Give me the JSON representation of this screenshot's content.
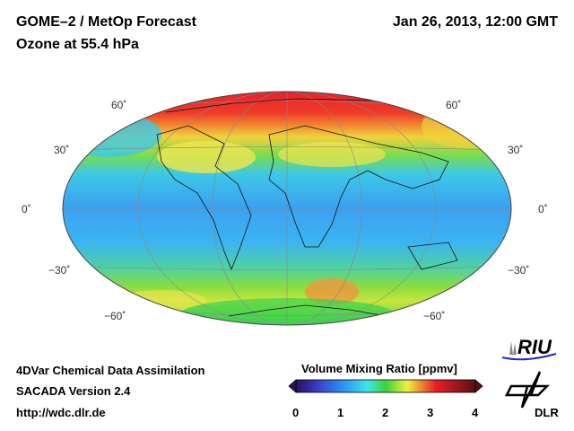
{
  "header": {
    "title": "GOME–2 / MetOp Forecast",
    "subtitle": "Ozone at 55.4 hPa",
    "datetime": "Jan 26, 2013, 12:00 GMT"
  },
  "map": {
    "projection": "hammer",
    "latitude_labels": [
      "60˚",
      "30˚",
      "0˚",
      "−30˚",
      "−60˚"
    ],
    "colors": {
      "low": "#2a1060",
      "blue": "#2a8cf0",
      "cyan": "#3ce8e8",
      "green": "#3cd23c",
      "yellow": "#f0f03c",
      "red": "#e81e28",
      "high": "#5a1010"
    }
  },
  "colorbar": {
    "title": "Volume Mixing Ratio [ppmv]",
    "ticks": [
      "0",
      "1",
      "2",
      "3",
      "4"
    ],
    "range": [
      0,
      4
    ]
  },
  "footer": {
    "line1": "4DVar Chemical Data Assimilation",
    "line2": "SACADA Version 2.4",
    "url": "http://wdc.dlr.de"
  },
  "logos": {
    "riu": "RIU",
    "dlr": "DLR"
  }
}
